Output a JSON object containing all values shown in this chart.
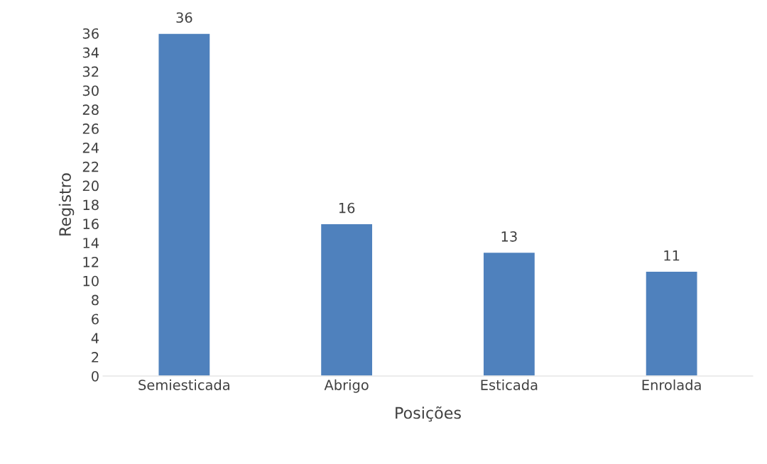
{
  "chart_data": {
    "type": "bar",
    "xlabel": "Posições",
    "ylabel": "Registro",
    "categories": [
      "Semiesticada",
      "Abrigo",
      "Esticada",
      "Enrolada"
    ],
    "values": [
      36,
      16,
      13,
      11
    ],
    "color": "#4f81bd",
    "ylim": [
      0,
      36
    ],
    "yticks": [
      0,
      2,
      4,
      6,
      8,
      10,
      12,
      14,
      16,
      18,
      20,
      22,
      24,
      26,
      28,
      30,
      32,
      34,
      36
    ],
    "data_labels": true,
    "grid": false,
    "legend": false
  }
}
